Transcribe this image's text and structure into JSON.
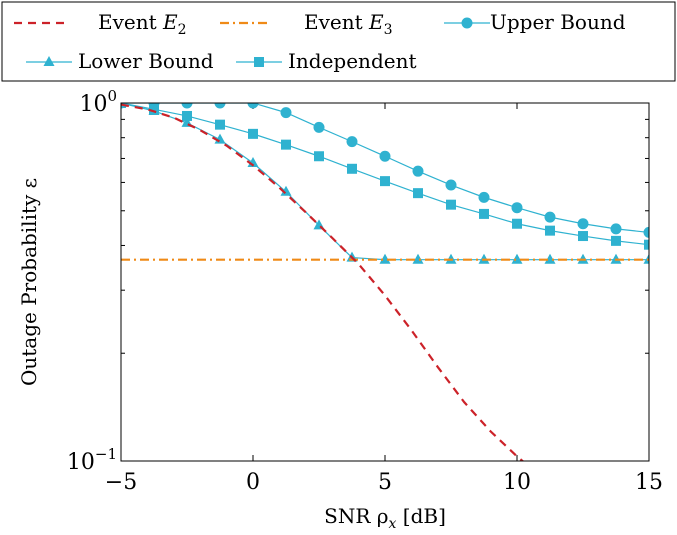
{
  "chart_data": {
    "type": "line",
    "xlabel": "SNR ρ",
    "xlabel_sub": "x",
    "xlabel_unit": "[dB]",
    "ylabel": "Outage Probability ε",
    "xlim": [
      -5,
      15
    ],
    "ylim": [
      0.1,
      1
    ],
    "yscale": "log",
    "x_ticks": [
      "−5",
      "0",
      "5",
      "10",
      "15"
    ],
    "x_tick_values": [
      -5,
      0,
      5,
      10,
      15
    ],
    "y_ticks": [
      {
        "base": "10",
        "exp": "0",
        "value": 1
      },
      {
        "base": "10",
        "exp": "−1",
        "value": 0.1
      }
    ],
    "legend": {
      "placement": "top"
    },
    "series": [
      {
        "name_prefix": "Event ",
        "name_var": "E",
        "name_sub": "2",
        "color": "#cc2229",
        "style": "dashed",
        "marker": "none",
        "x": [
          -5,
          -4,
          -3,
          -2,
          -1,
          0,
          1,
          2,
          3,
          4,
          5,
          6,
          7,
          8,
          9,
          10,
          10.5
        ],
        "y": [
          0.99,
          0.96,
          0.91,
          0.84,
          0.76,
          0.67,
          0.58,
          0.495,
          0.42,
          0.355,
          0.29,
          0.232,
          0.183,
          0.146,
          0.121,
          0.103,
          0.096
        ]
      },
      {
        "name_prefix": "Event ",
        "name_var": "E",
        "name_sub": "3",
        "color": "#ef8a17",
        "style": "dashdot",
        "marker": "none",
        "x": [
          -5,
          15
        ],
        "y": [
          0.365,
          0.365
        ]
      },
      {
        "name": "Upper Bound",
        "color": "#2fb2d0",
        "style": "solid",
        "marker": "circle",
        "x": [
          -5,
          -3.75,
          -2.5,
          -1.25,
          0,
          1.25,
          2.5,
          3.75,
          5,
          6.25,
          7.5,
          8.75,
          10,
          11.25,
          12.5,
          13.75,
          15
        ],
        "y": [
          1.0,
          1.0,
          1.0,
          1.0,
          1.0,
          0.94,
          0.855,
          0.78,
          0.71,
          0.645,
          0.59,
          0.545,
          0.51,
          0.48,
          0.46,
          0.445,
          0.435
        ]
      },
      {
        "name": "Lower Bound",
        "color": "#2fb2d0",
        "style": "solid",
        "marker": "triangle",
        "x": [
          -5,
          -3.75,
          -2.5,
          -1.25,
          0,
          1.25,
          2.5,
          3.75,
          5,
          6.25,
          7.5,
          8.75,
          10,
          11.25,
          12.5,
          13.75,
          15
        ],
        "y": [
          1.0,
          0.95,
          0.88,
          0.79,
          0.68,
          0.565,
          0.455,
          0.37,
          0.365,
          0.365,
          0.365,
          0.365,
          0.365,
          0.365,
          0.365,
          0.365,
          0.365
        ]
      },
      {
        "name": "Independent",
        "color": "#2fb2d0",
        "style": "solid",
        "marker": "square",
        "x": [
          -5,
          -3.75,
          -2.5,
          -1.25,
          0,
          1.25,
          2.5,
          3.75,
          5,
          6.25,
          7.5,
          8.75,
          10,
          11.25,
          12.5,
          13.75,
          15
        ],
        "y": [
          1.0,
          0.96,
          0.92,
          0.87,
          0.82,
          0.765,
          0.71,
          0.655,
          0.605,
          0.56,
          0.52,
          0.49,
          0.46,
          0.44,
          0.425,
          0.412,
          0.402
        ]
      }
    ]
  }
}
